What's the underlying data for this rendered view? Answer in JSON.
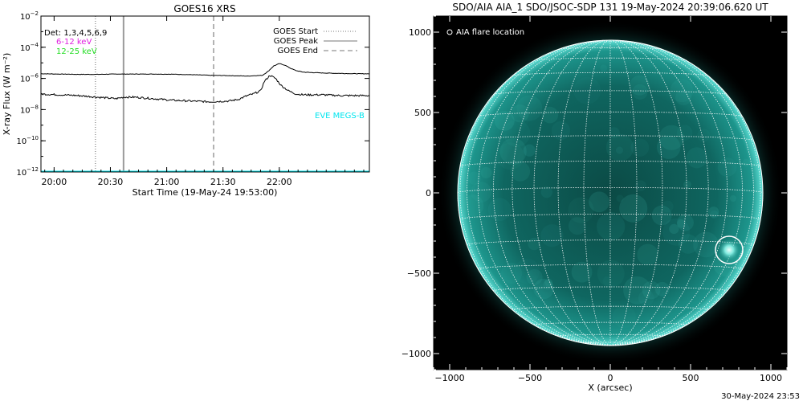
{
  "chart_data": [
    {
      "type": "line",
      "title": "GOES16 XRS",
      "xlabel": "Start Time (19-May-24 19:53:00)",
      "ylabel": "X-ray Flux (W m⁻²)",
      "y_scale": "log",
      "ylim_exponents": [
        -12,
        -2
      ],
      "y_tick_exponents": [
        -12,
        -10,
        -8,
        -6,
        -4,
        -2
      ],
      "xlim_minutes": [
        0,
        175
      ],
      "x_ticks": [
        {
          "t": 7,
          "label": "20:00"
        },
        {
          "t": 37,
          "label": "20:30"
        },
        {
          "t": 67,
          "label": "21:00"
        },
        {
          "t": 97,
          "label": "21:30"
        },
        {
          "t": 127,
          "label": "22:00"
        }
      ],
      "detectors_label": "Det: 1,3,4,5,6,9",
      "legend_left": [
        {
          "label": "6-12 keV",
          "color": "#e020e0"
        },
        {
          "label": "12-25 keV",
          "color": "#22dd22"
        }
      ],
      "legend_right": [
        {
          "label": "GOES Start",
          "style": "dotted",
          "t": 29
        },
        {
          "label": "GOES Peak",
          "style": "solid",
          "t": 44
        },
        {
          "label": "GOES End",
          "style": "dashed",
          "t": 92
        }
      ],
      "annotation": {
        "text": "EVE MEGS-B",
        "color": "#00e5ee"
      },
      "grid": false,
      "series": [
        {
          "color": "#000000",
          "t": [
            0,
            10,
            20,
            30,
            40,
            50,
            60,
            70,
            80,
            90,
            100,
            110,
            118,
            121,
            124,
            127,
            130,
            133,
            136,
            140,
            150,
            160,
            170,
            175
          ],
          "log_flux": [
            -5.7,
            -5.72,
            -5.74,
            -5.74,
            -5.72,
            -5.72,
            -5.72,
            -5.73,
            -5.76,
            -5.8,
            -5.82,
            -5.85,
            -5.8,
            -5.55,
            -5.2,
            -5.05,
            -5.15,
            -5.35,
            -5.5,
            -5.6,
            -5.65,
            -5.68,
            -5.7,
            -5.7
          ]
        },
        {
          "color": "#000000",
          "t": [
            0,
            10,
            20,
            30,
            40,
            44,
            50,
            60,
            70,
            80,
            90,
            100,
            105,
            110,
            113,
            115,
            117,
            119,
            122,
            125,
            128,
            132,
            136,
            140,
            150,
            160,
            170,
            175
          ],
          "log_flux": [
            -7.0,
            -7.05,
            -7.1,
            -7.2,
            -7.3,
            -7.2,
            -7.2,
            -7.3,
            -7.4,
            -7.45,
            -7.5,
            -7.45,
            -7.35,
            -7.1,
            -7.0,
            -6.9,
            -6.8,
            -6.2,
            -5.8,
            -6.0,
            -6.45,
            -6.8,
            -7.0,
            -7.05,
            -7.05,
            -7.1,
            -7.1,
            -7.1
          ]
        },
        {
          "color": "#00e5ee",
          "t": [
            0,
            175
          ],
          "log_flux": [
            -12,
            -12
          ]
        }
      ]
    },
    {
      "type": "image",
      "title": "SDO/AIA AIA_1 SDO/JSOC-SDP 131 19-May-2024 20:39:06.620 UT",
      "xlabel": "X (arcsec)",
      "ylabel": "",
      "xlim": [
        -1100,
        1100
      ],
      "ylim": [
        -1100,
        1100
      ],
      "x_ticks": [
        -1000,
        -500,
        0,
        500,
        1000
      ],
      "y_ticks": [
        -1000,
        -500,
        0,
        500,
        1000
      ],
      "solar_radius_arcsec": 950,
      "grid_spacing_deg": 10,
      "legend": "AIA flare location",
      "flare_location": {
        "x": 740,
        "y": -355,
        "radius": 85
      },
      "colormap": "aia-131-teal"
    }
  ],
  "footer": {
    "timestamp": "30-May-2024 23:53"
  }
}
